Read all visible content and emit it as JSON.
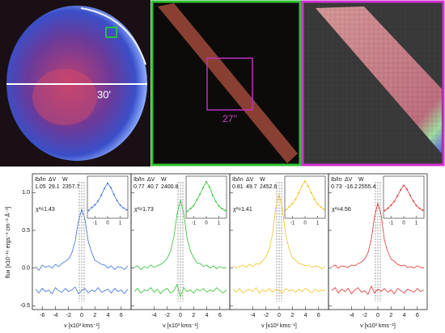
{
  "images": {
    "scale_label_1": "30'",
    "scale_label_2": "27''"
  },
  "chart_data": [
    {
      "type": "line",
      "ylabel": "flux [x10⁻¹⁶ ergs⁻¹ cm⁻² Å⁻¹]",
      "xlabel": "v [x10³ kms⁻¹]",
      "param_names": [
        "Ib/In",
        "ΔV",
        "W"
      ],
      "params": [
        1.05,
        29.1,
        2357.7
      ],
      "chi2_label": "χ²=1.43",
      "xlim": [
        -7.5,
        7.5
      ],
      "xticks": [
        -6,
        -4,
        -2,
        0,
        2,
        4,
        6
      ],
      "ylim": [
        -0.55,
        1.25
      ],
      "yticks": [
        {
          "value": -0.5,
          "label": "-0.5"
        },
        {
          "value": 0,
          "label": "0.0"
        },
        {
          "value": 0.5,
          "label": "0.5"
        },
        {
          "value": 1,
          "label": "1.0"
        }
      ],
      "x": [
        -7,
        -6.5,
        -6,
        -5.5,
        -5,
        -4.5,
        -4,
        -3.5,
        -3,
        -2.5,
        -2,
        -1.5,
        -1,
        -0.5,
        0,
        0.5,
        1,
        1.5,
        2,
        2.5,
        3,
        3.5,
        4,
        4.5,
        5,
        5.5,
        6,
        6.5,
        7
      ],
      "series": [
        {
          "color": "#3a6fd8",
          "values": [
            0.02,
            -0.03,
            0.04,
            0.01,
            0.03,
            0.0,
            0.05,
            0.02,
            0.06,
            0.09,
            0.12,
            0.2,
            0.36,
            0.62,
            0.78,
            0.64,
            0.35,
            0.21,
            0.1,
            0.08,
            0.05,
            0.04,
            0.0,
            0.03,
            -0.02,
            0.02,
            0.01,
            -0.02,
            0.03
          ]
        },
        {
          "color": "#3a6fd8",
          "values": [
            -0.28,
            -0.33,
            -0.27,
            -0.31,
            -0.29,
            -0.34,
            -0.26,
            -0.3,
            -0.32,
            -0.27,
            -0.31,
            -0.29,
            -0.25,
            -0.34,
            -0.3,
            -0.27,
            -0.33,
            -0.29,
            -0.31,
            -0.26,
            -0.32,
            -0.3,
            -0.28,
            -0.33,
            -0.27,
            -0.31,
            -0.29,
            -0.34,
            -0.28
          ]
        }
      ],
      "inset_x": [
        -1.5,
        -1.25,
        -1,
        -0.75,
        -0.5,
        -0.25,
        0,
        0.25,
        0.5,
        0.75,
        1,
        1.25,
        1.5
      ],
      "inset_values": [
        0.2,
        0.28,
        0.35,
        0.45,
        0.6,
        0.78,
        0.92,
        0.8,
        0.62,
        0.46,
        0.34,
        0.27,
        0.22
      ],
      "inset_xlim": [
        -1.6,
        1.6
      ],
      "inset_ylim": [
        0,
        1.1
      ],
      "inset_xticks": [
        -1,
        0,
        1
      ]
    },
    {
      "type": "line",
      "xlabel": "v [x10³ kms⁻¹]",
      "param_names": [
        "Ib/In",
        "ΔV",
        "W"
      ],
      "params": [
        0.77,
        40.7,
        2400.8
      ],
      "chi2_label": "χ²=1.73",
      "xlim": [
        -7.5,
        7.5
      ],
      "xticks": [
        -4,
        -2,
        0,
        2,
        4,
        6
      ],
      "ylim": [
        -0.55,
        1.25
      ],
      "x": [
        -7,
        -6.5,
        -6,
        -5.5,
        -5,
        -4.5,
        -4,
        -3.5,
        -3,
        -2.5,
        -2,
        -1.5,
        -1,
        -0.5,
        0,
        0.5,
        1,
        1.5,
        2,
        2.5,
        3,
        3.5,
        4,
        4.5,
        5,
        5.5,
        6,
        6.5,
        7
      ],
      "series": [
        {
          "color": "#2fc02f",
          "values": [
            0.01,
            0.03,
            -0.02,
            0.02,
            0.0,
            0.04,
            0.01,
            0.03,
            0.05,
            0.08,
            0.13,
            0.22,
            0.41,
            0.72,
            0.9,
            0.73,
            0.4,
            0.23,
            0.14,
            0.07,
            0.06,
            0.02,
            0.04,
            0.0,
            0.03,
            -0.01,
            0.02,
            0.0,
            0.01
          ]
        },
        {
          "color": "#2fc02f",
          "values": [
            -0.31,
            -0.27,
            -0.33,
            -0.29,
            -0.3,
            -0.26,
            -0.32,
            -0.28,
            -0.34,
            -0.29,
            -0.27,
            -0.33,
            -0.3,
            -0.22,
            -0.38,
            -0.26,
            -0.31,
            -0.29,
            -0.33,
            -0.28,
            -0.3,
            -0.27,
            -0.32,
            -0.29,
            -0.31,
            -0.26,
            -0.3,
            -0.33,
            -0.29
          ]
        }
      ],
      "inset_x": [
        -1.5,
        -1.25,
        -1,
        -0.75,
        -0.5,
        -0.25,
        0,
        0.25,
        0.5,
        0.75,
        1,
        1.25,
        1.5
      ],
      "inset_values": [
        0.18,
        0.25,
        0.33,
        0.48,
        0.63,
        0.8,
        0.95,
        0.82,
        0.6,
        0.44,
        0.32,
        0.25,
        0.2
      ],
      "inset_xlim": [
        -1.6,
        1.6
      ],
      "inset_ylim": [
        0,
        1.1
      ],
      "inset_xticks": [
        -1,
        0,
        1
      ]
    },
    {
      "type": "line",
      "xlabel": "v [x10³ kms⁻¹]",
      "param_names": [
        "Ib/In",
        "ΔV",
        "W"
      ],
      "params": [
        0.81,
        49.7,
        2452.6
      ],
      "chi2_label": "χ²=1.41",
      "xlim": [
        -7.5,
        7.5
      ],
      "xticks": [
        -4,
        -2,
        0,
        2,
        4,
        6
      ],
      "ylim": [
        -0.55,
        1.25
      ],
      "x": [
        -7,
        -6.5,
        -6,
        -5.5,
        -5,
        -4.5,
        -4,
        -3.5,
        -3,
        -2.5,
        -2,
        -1.5,
        -1,
        -0.5,
        0,
        0.5,
        1,
        1.5,
        2,
        2.5,
        3,
        3.5,
        4,
        4.5,
        5,
        5.5,
        6,
        6.5,
        7
      ],
      "series": [
        {
          "color": "#f0c020",
          "values": [
            0.03,
            0.0,
            0.02,
            0.04,
            0.01,
            0.05,
            0.02,
            0.06,
            0.05,
            0.1,
            0.15,
            0.25,
            0.45,
            0.8,
            0.98,
            0.78,
            0.44,
            0.26,
            0.14,
            0.11,
            0.06,
            0.05,
            0.03,
            0.04,
            0.01,
            0.03,
            0.02,
            -0.01,
            0.02
          ]
        },
        {
          "color": "#f0c020",
          "values": [
            -0.29,
            -0.32,
            -0.27,
            -0.33,
            -0.3,
            -0.28,
            -0.31,
            -0.26,
            -0.33,
            -0.29,
            -0.31,
            -0.27,
            -0.32,
            -0.28,
            -0.3,
            -0.33,
            -0.27,
            -0.3,
            -0.29,
            -0.32,
            -0.28,
            -0.31,
            -0.27,
            -0.3,
            -0.33,
            -0.28,
            -0.31,
            -0.29,
            -0.3
          ]
        }
      ],
      "inset_x": [
        -1.5,
        -1.25,
        -1,
        -0.75,
        -0.5,
        -0.25,
        0,
        0.25,
        0.5,
        0.75,
        1,
        1.25,
        1.5
      ],
      "inset_values": [
        0.22,
        0.3,
        0.38,
        0.5,
        0.66,
        0.84,
        0.97,
        0.85,
        0.66,
        0.5,
        0.37,
        0.29,
        0.23
      ],
      "inset_xlim": [
        -1.6,
        1.6
      ],
      "inset_ylim": [
        0,
        1.1
      ],
      "inset_xticks": [
        -1,
        0,
        1
      ]
    },
    {
      "type": "line",
      "xlabel": "v [x10³ kms⁻¹]",
      "param_names": [
        "Ib/In",
        "ΔV",
        "W"
      ],
      "params": [
        0.73,
        -16.2,
        2555.4
      ],
      "chi2_label": "χ²=4.56",
      "xlim": [
        -7.5,
        7.5
      ],
      "xticks": [
        -4,
        -2,
        0,
        2,
        4,
        6
      ],
      "ylim": [
        -0.55,
        1.25
      ],
      "x": [
        -7,
        -6.5,
        -6,
        -5.5,
        -5,
        -4.5,
        -4,
        -3.5,
        -3,
        -2.5,
        -2,
        -1.5,
        -1,
        -0.5,
        0,
        0.5,
        1,
        1.5,
        2,
        2.5,
        3,
        3.5,
        4,
        4.5,
        5,
        5.5,
        6,
        6.5,
        7
      ],
      "series": [
        {
          "color": "#e03030",
          "values": [
            0.02,
            0.04,
            0.0,
            0.03,
            0.02,
            0.01,
            0.04,
            0.03,
            0.06,
            0.08,
            0.12,
            0.2,
            0.38,
            0.68,
            0.86,
            0.7,
            0.37,
            0.22,
            0.12,
            0.09,
            0.05,
            0.03,
            0.04,
            0.01,
            0.02,
            0.0,
            0.03,
            0.01,
            0.0
          ]
        },
        {
          "color": "#e03030",
          "values": [
            -0.3,
            -0.26,
            -0.33,
            -0.28,
            -0.31,
            -0.27,
            -0.34,
            -0.29,
            -0.26,
            -0.32,
            -0.3,
            -0.35,
            -0.24,
            -0.33,
            -0.28,
            -0.31,
            -0.27,
            -0.32,
            -0.29,
            -0.34,
            -0.27,
            -0.3,
            -0.33,
            -0.28,
            -0.3,
            -0.32,
            -0.27,
            -0.31,
            -0.29
          ]
        }
      ],
      "inset_x": [
        -1.5,
        -1.25,
        -1,
        -0.75,
        -0.5,
        -0.25,
        0,
        0.25,
        0.5,
        0.75,
        1,
        1.25,
        1.5
      ],
      "inset_values": [
        0.2,
        0.26,
        0.34,
        0.44,
        0.58,
        0.74,
        0.86,
        0.76,
        0.6,
        0.45,
        0.33,
        0.26,
        0.21
      ],
      "inset_xlim": [
        -1.6,
        1.6
      ],
      "inset_ylim": [
        0,
        1.1
      ],
      "inset_xticks": [
        -1,
        0,
        1
      ]
    }
  ]
}
